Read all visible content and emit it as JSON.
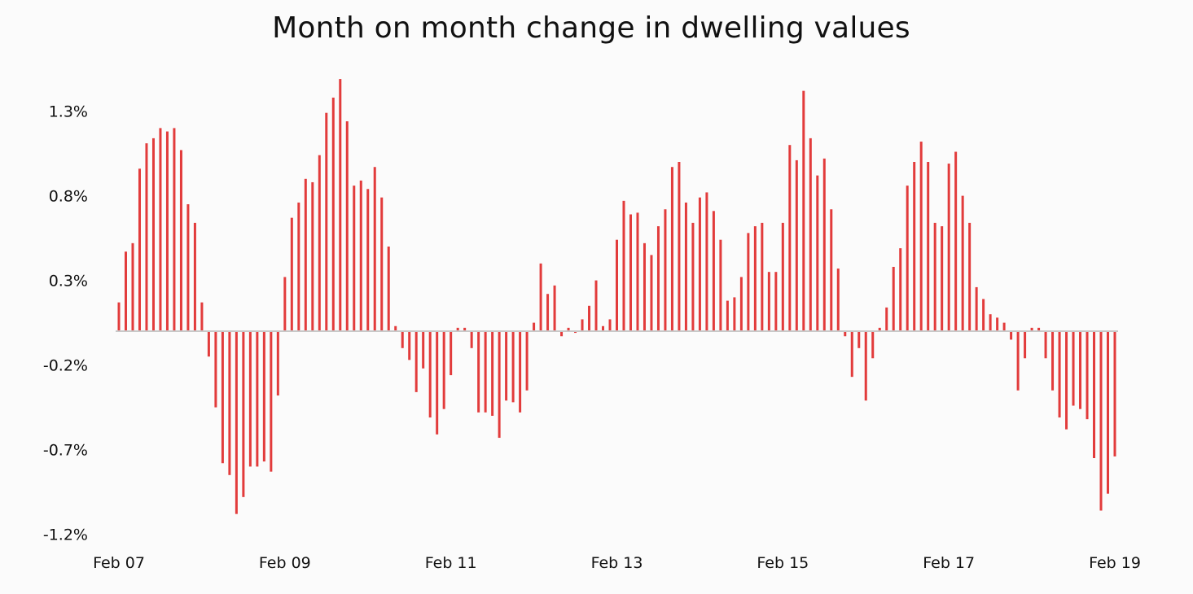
{
  "chart_data": {
    "type": "bar",
    "title": "Month on month change in dwelling values",
    "xlabel": "",
    "ylabel": "",
    "y_unit": "%",
    "ylim": [
      -1.2,
      1.45
    ],
    "y_ticks": [
      1.3,
      0.8,
      0.3,
      -0.2,
      -0.7,
      -1.2
    ],
    "y_tick_labels": [
      "1.3%",
      "0.8%",
      "0.3%",
      "-0.2%",
      "-0.7%",
      "-1.2%"
    ],
    "x_tick_labels": [
      "Feb 07",
      "Feb 09",
      "Feb 11",
      "Feb 13",
      "Feb 15",
      "Feb 17",
      "Feb 19"
    ],
    "grid": false,
    "legend": "none",
    "colors": {
      "bar": "#e23b3b",
      "baseline": "#c8c8c8",
      "text": "#111111"
    },
    "series": [
      {
        "values": [
          0.17,
          0.47,
          0.52,
          0.96,
          1.11,
          1.14,
          1.2,
          1.18,
          1.2,
          1.07,
          0.75,
          0.64,
          0.17,
          -0.15,
          -0.45,
          -0.78,
          -0.85,
          -1.08,
          -0.98,
          -0.8,
          -0.8,
          -0.77,
          -0.83,
          -0.38,
          0.32,
          0.67,
          0.76,
          0.9,
          0.88,
          1.04,
          1.29,
          1.38,
          1.49,
          1.24,
          0.86,
          0.89,
          0.84,
          0.97,
          0.79,
          0.5,
          0.03,
          -0.1,
          -0.17,
          -0.36,
          -0.22,
          -0.51,
          -0.61,
          -0.46,
          -0.26,
          0.02,
          0.02,
          -0.1,
          -0.48,
          -0.48,
          -0.5,
          -0.63,
          -0.41,
          -0.42,
          -0.48,
          -0.35,
          0.05,
          0.4,
          0.22,
          0.27,
          -0.03,
          0.02,
          -0.01,
          0.07,
          0.15,
          0.3,
          0.03,
          0.07,
          0.54,
          0.77,
          0.69,
          0.7,
          0.52,
          0.45,
          0.62,
          0.72,
          0.97,
          1.0,
          0.76,
          0.64,
          0.79,
          0.82,
          0.71,
          0.54,
          0.18,
          0.2,
          0.32,
          0.58,
          0.62,
          0.64,
          0.35,
          0.35,
          0.64,
          1.1,
          1.01,
          1.42,
          1.14,
          0.92,
          1.02,
          0.72,
          0.37,
          -0.03,
          -0.27,
          -0.1,
          -0.41,
          -0.16,
          0.02,
          0.14,
          0.38,
          0.49,
          0.86,
          1.0,
          1.12,
          1.0,
          0.64,
          0.62,
          0.99,
          1.06,
          0.8,
          0.64,
          0.26,
          0.19,
          0.1,
          0.08,
          0.05,
          -0.05,
          -0.35,
          -0.16,
          0.02,
          0.02,
          -0.16,
          -0.35,
          -0.51,
          -0.58,
          -0.44,
          -0.46,
          -0.52,
          -0.75,
          -1.06,
          -0.96,
          -0.74
        ]
      }
    ]
  }
}
